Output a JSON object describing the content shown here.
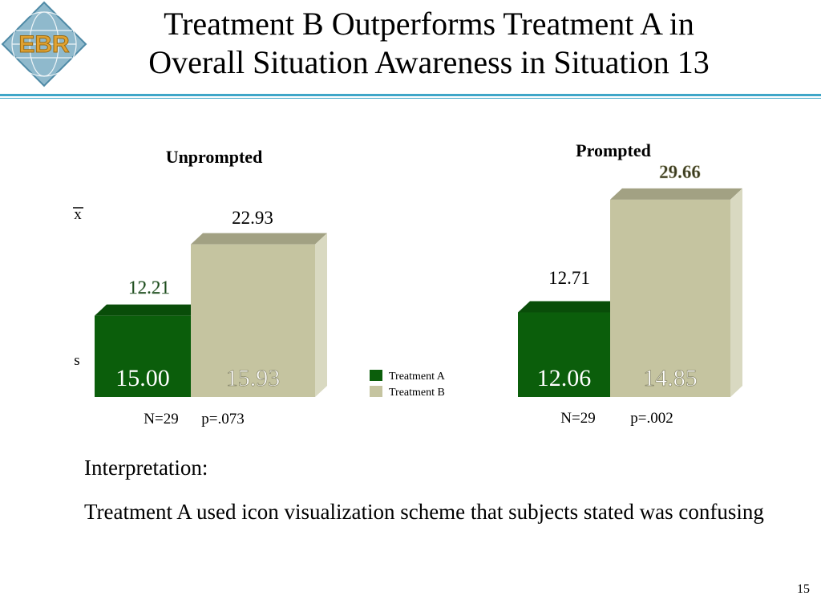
{
  "title_line1": "Treatment B Outperforms Treatment A in",
  "title_line2": "Overall Situation Awareness in Situation 13",
  "logo_text": "EBR",
  "colors": {
    "treatment_a": "#0b5e0b",
    "treatment_b": "#c5c4a0",
    "rule": "#3ea6c8"
  },
  "chart_data": [
    {
      "type": "bar",
      "title": "Unprompted",
      "categories": [
        "Treatment A",
        "Treatment B"
      ],
      "row_labels": [
        "x",
        "s"
      ],
      "series": [
        {
          "name": "Treatment A",
          "mean": 12.21,
          "sd": 15.0
        },
        {
          "name": "Treatment B",
          "mean": 22.93,
          "sd": 15.93
        }
      ],
      "n_label": "N=29",
      "p_label": "p=.073",
      "ylim": [
        0,
        32
      ]
    },
    {
      "type": "bar",
      "title": "Prompted",
      "categories": [
        "Treatment A",
        "Treatment B"
      ],
      "series": [
        {
          "name": "Treatment A",
          "mean": 12.71,
          "sd": 12.06
        },
        {
          "name": "Treatment B",
          "mean": 29.66,
          "sd": 14.85
        }
      ],
      "n_label": "N=29",
      "p_label": "p=.002",
      "ylim": [
        0,
        32
      ]
    }
  ],
  "legend": [
    "Treatment A",
    "Treatment B"
  ],
  "interpretation_heading": "Interpretation:",
  "interpretation_text": "Treatment A used icon visualization scheme that subjects stated was confusing",
  "page_number": "15"
}
